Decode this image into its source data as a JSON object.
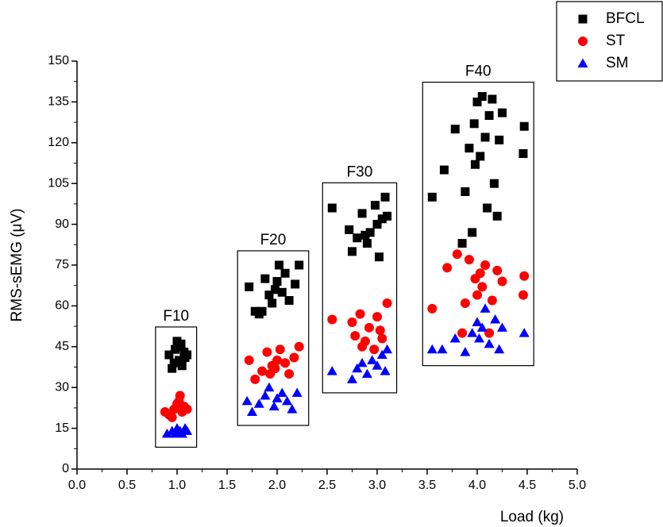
{
  "chart_data": {
    "type": "scatter",
    "xlabel": "Load (kg)",
    "ylabel": "RMS-sEMG (μV)",
    "xlim": [
      0,
      5
    ],
    "ylim": [
      0,
      150
    ],
    "xticks": [
      {
        "value": 0,
        "label": "0.0"
      },
      {
        "value": 0.5,
        "label": "0.5"
      },
      {
        "value": 1,
        "label": "1.0"
      },
      {
        "value": 1.5,
        "label": "1.5"
      },
      {
        "value": 2,
        "label": "2.0"
      },
      {
        "value": 2.5,
        "label": "2.5"
      },
      {
        "value": 3,
        "label": "3.0"
      },
      {
        "value": 3.5,
        "label": "3.5"
      },
      {
        "value": 4,
        "label": "4.0"
      },
      {
        "value": 4.5,
        "label": "4.5"
      },
      {
        "value": 5,
        "label": "5.0"
      }
    ],
    "yticks": [
      0,
      15,
      30,
      45,
      60,
      75,
      90,
      105,
      120,
      135,
      150
    ],
    "legend": "upper right",
    "annotations": [
      "F10",
      "F20",
      "F30",
      "F40"
    ],
    "series": [
      {
        "name": "BFCL",
        "color": "#000000",
        "marker": "square",
        "x": [
          0.92,
          0.95,
          0.98,
          1.0,
          1.02,
          1.03,
          1.05,
          1.07,
          1.08,
          1.1,
          0.97,
          1.04,
          1.72,
          1.78,
          1.82,
          1.88,
          1.92,
          1.95,
          1.98,
          2.0,
          2.02,
          2.05,
          2.08,
          2.12,
          2.18,
          2.22,
          1.85,
          2.55,
          2.72,
          2.75,
          2.8,
          2.85,
          2.9,
          2.93,
          2.98,
          3.0,
          3.02,
          3.05,
          3.08,
          3.1,
          2.88,
          3.55,
          3.67,
          3.78,
          3.85,
          3.88,
          3.92,
          3.95,
          3.97,
          4.0,
          4.03,
          4.05,
          4.08,
          4.1,
          4.12,
          4.15,
          4.17,
          4.2,
          4.22,
          4.25,
          4.47,
          4.46,
          3.98
        ],
        "values": [
          42,
          37,
          44,
          47,
          40,
          45,
          38,
          43,
          41,
          42,
          39,
          46,
          67,
          58,
          57,
          70,
          64,
          61,
          66,
          69,
          75,
          65,
          72,
          62,
          68,
          75,
          58,
          96,
          88,
          80,
          85,
          94,
          83,
          87,
          97,
          90,
          78,
          92,
          100,
          93,
          86,
          100,
          110,
          125,
          83,
          102,
          118,
          87,
          127,
          135,
          115,
          137,
          122,
          96,
          130,
          136,
          105,
          93,
          121,
          131,
          126,
          116,
          112
        ]
      },
      {
        "name": "ST",
        "color": "#ff0000",
        "marker": "circle",
        "x": [
          0.88,
          0.92,
          0.97,
          1.0,
          1.03,
          1.05,
          1.07,
          1.1,
          0.95,
          1.02,
          1.72,
          1.78,
          1.85,
          1.9,
          1.95,
          1.98,
          2.0,
          2.03,
          2.08,
          2.12,
          2.17,
          2.22,
          1.93,
          2.55,
          2.75,
          2.78,
          2.83,
          2.88,
          2.92,
          2.97,
          3.0,
          3.03,
          3.05,
          3.1,
          2.85,
          3.55,
          3.7,
          3.8,
          3.88,
          3.92,
          3.98,
          4.0,
          4.03,
          4.05,
          4.08,
          4.12,
          4.15,
          4.2,
          4.25,
          4.47,
          4.46,
          3.85
        ],
        "values": [
          21,
          20,
          22,
          24,
          27,
          21,
          23,
          22,
          19,
          25,
          40,
          33,
          36,
          43,
          38,
          37,
          40,
          44,
          39,
          35,
          41,
          45,
          35,
          55,
          54,
          49,
          57,
          47,
          52,
          44,
          56,
          51,
          48,
          61,
          45,
          59,
          74,
          79,
          61,
          77,
          70,
          64,
          72,
          67,
          75,
          50,
          62,
          73,
          69,
          71,
          64,
          50
        ]
      },
      {
        "name": "SM",
        "color": "#0000ff",
        "marker": "triangle",
        "x": [
          0.9,
          0.95,
          0.98,
          1.0,
          1.03,
          1.05,
          1.08,
          1.1,
          1.7,
          1.75,
          1.82,
          1.88,
          1.92,
          1.97,
          2.0,
          2.05,
          2.1,
          2.15,
          2.2,
          2.55,
          2.75,
          2.8,
          2.85,
          2.9,
          2.95,
          3.0,
          3.05,
          3.1,
          3.08,
          3.55,
          3.65,
          3.78,
          3.88,
          3.95,
          4.0,
          4.05,
          4.08,
          4.12,
          4.18,
          4.22,
          4.25,
          4.47,
          4.02
        ],
        "values": [
          13,
          14,
          13,
          15,
          14,
          13,
          15,
          14,
          25,
          21,
          24,
          27,
          30,
          23,
          26,
          28,
          25,
          22,
          28,
          36,
          33,
          37,
          39,
          35,
          40,
          38,
          42,
          44,
          36,
          44,
          44,
          48,
          43,
          50,
          54,
          52,
          59,
          46,
          55,
          44,
          52,
          50,
          48
        ]
      }
    ]
  }
}
